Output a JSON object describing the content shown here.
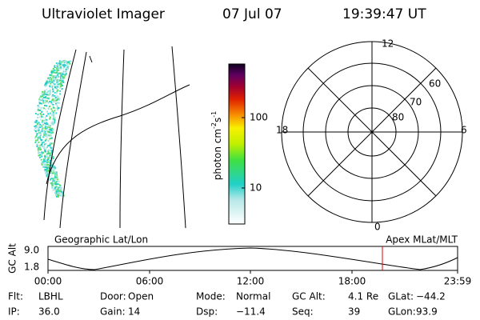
{
  "header": {
    "title": "Ultraviolet Imager",
    "date": "07 Jul 07",
    "time": "19:39:47 UT"
  },
  "colorbar": {
    "label_parts": [
      "photon cm",
      "-2",
      "s",
      "-1"
    ],
    "ticks": [
      "100",
      "10"
    ]
  },
  "polar": {
    "mlt_labels": [
      "12",
      "18",
      "6",
      "0"
    ],
    "lat_labels": [
      "60",
      "70",
      "80"
    ]
  },
  "timeline": {
    "left_title": "Geographic Lat/Lon",
    "right_title": "Apex MLat/MLT",
    "axis_label": "GC Alt",
    "yticks": [
      "9.0",
      "1.8"
    ],
    "xticks": [
      "00:00",
      "06:00",
      "12:00",
      "18:00",
      "23:59"
    ]
  },
  "footer": {
    "rows": [
      [
        {
          "label": "Flt:",
          "value": "LBHL"
        },
        {
          "label": "Door:",
          "value": "Open"
        },
        {
          "label": "Mode:",
          "value": "Normal"
        },
        {
          "label": "GC Alt:",
          "value": "4.1 Re"
        },
        {
          "label": "GLat:",
          "value": "−44.2"
        }
      ],
      [
        {
          "label": "IP:",
          "value": "36.0"
        },
        {
          "label": "Gain:",
          "value": "14"
        },
        {
          "label": "Dsp:",
          "value": "−11.4"
        },
        {
          "label": "Seq:",
          "value": "39"
        },
        {
          "label": "GLon:",
          "value": "93.9"
        }
      ]
    ]
  }
}
